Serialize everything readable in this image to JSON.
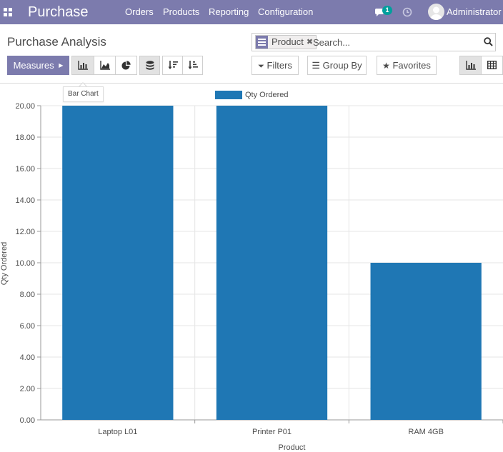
{
  "navbar": {
    "brand": "Purchase",
    "menu": [
      "Orders",
      "Products",
      "Reporting",
      "Configuration"
    ],
    "chat_badge": "1",
    "user": "Administrator"
  },
  "control_panel": {
    "title": "Purchase Analysis",
    "search": {
      "facet": "Product",
      "placeholder": "Search..."
    },
    "measures_label": "Measures",
    "filters_label": "Filters",
    "groupby_label": "Group By",
    "favorites_label": "Favorites",
    "tooltip": "Bar Chart"
  },
  "colors": {
    "navbar": "#7c7bad",
    "bar": "#1f77b4",
    "badge": "#00a09d"
  },
  "chart_data": {
    "type": "bar",
    "categories": [
      "Laptop L01",
      "Printer P01",
      "RAM 4GB"
    ],
    "series": [
      {
        "name": "Qty Ordered",
        "values": [
          20,
          20,
          10
        ]
      }
    ],
    "xlabel": "Product",
    "ylabel": "Qty Ordered",
    "ylim": [
      0,
      20
    ],
    "yticks": [
      "0.00",
      "2.00",
      "4.00",
      "6.00",
      "8.00",
      "10.00",
      "12.00",
      "14.00",
      "16.00",
      "18.00",
      "20.00"
    ],
    "grid": true,
    "legend": "top-center"
  }
}
